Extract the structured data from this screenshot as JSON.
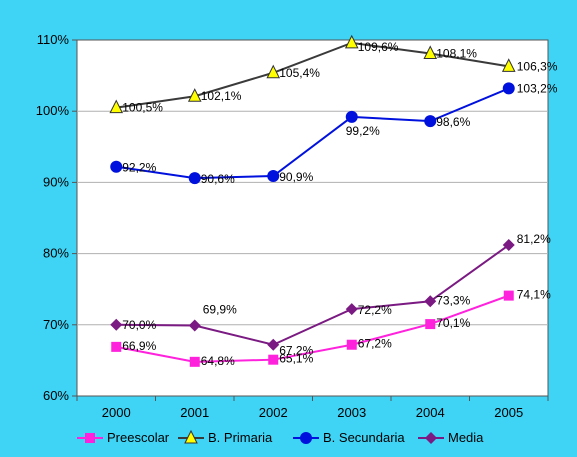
{
  "chart_data": {
    "type": "line",
    "title": "",
    "xlabel": "",
    "ylabel": "",
    "categories": [
      "2000",
      "2001",
      "2002",
      "2003",
      "2004",
      "2005"
    ],
    "ylim": [
      60,
      110
    ],
    "y_ticks": [
      "60%",
      "70%",
      "80%",
      "90%",
      "100%",
      "110%"
    ],
    "grid": true,
    "legend_position": "bottom",
    "series": [
      {
        "name": "Preescolar",
        "color": "#ff22dd",
        "marker": "square",
        "values": [
          66.9,
          64.8,
          65.1,
          67.2,
          70.1,
          74.1
        ],
        "labels": [
          "66,9%",
          "64,8%",
          "65,1%",
          "67,2%",
          "70,1%",
          "74,1%"
        ]
      },
      {
        "name": "B. Primaria",
        "color": "#3a3a3a",
        "marker": "triangle",
        "marker_fill": "#ffff00",
        "values": [
          100.5,
          102.1,
          105.4,
          109.6,
          108.1,
          106.3
        ],
        "labels": [
          "100,5%",
          "102,1%",
          "105,4%",
          "109,6%",
          "108,1%",
          "106,3%"
        ]
      },
      {
        "name": "B. Secundaria",
        "color": "#0011dd",
        "marker": "circle",
        "values": [
          92.2,
          90.6,
          90.9,
          99.2,
          98.6,
          103.2
        ],
        "labels": [
          "92,2%",
          "90,6%",
          "90,9%",
          "99,2%",
          "98,6%",
          "103,2%"
        ]
      },
      {
        "name": "Media",
        "color": "#7a1a82",
        "marker": "diamond",
        "values": [
          70.0,
          69.9,
          67.2,
          72.2,
          73.3,
          81.2
        ],
        "labels": [
          "70,0%",
          "69,9%",
          "67,2%",
          "72,2%",
          "73,3%",
          "81,2%"
        ]
      }
    ]
  }
}
